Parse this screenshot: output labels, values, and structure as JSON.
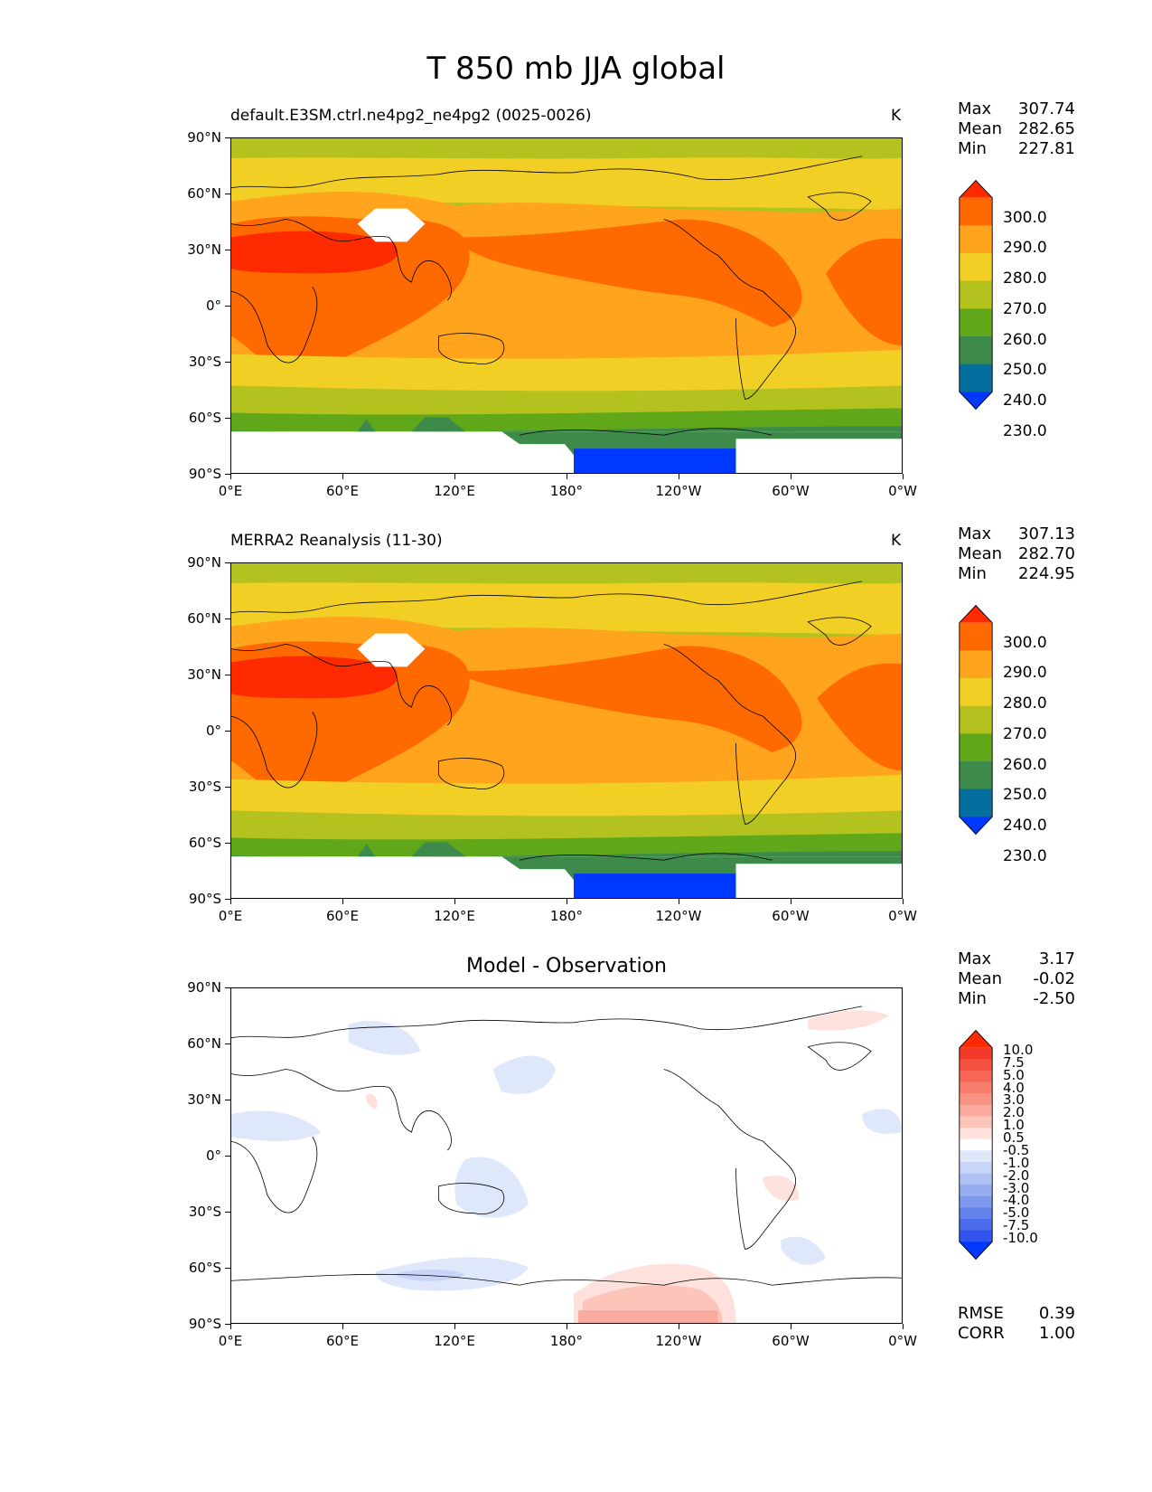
{
  "figure": {
    "title": "T 850 mb JJA global"
  },
  "axes": {
    "y_ticks": [
      "90°N",
      "60°N",
      "30°N",
      "0°",
      "30°S",
      "60°S",
      "90°S"
    ],
    "x_ticks": [
      "0°E",
      "60°E",
      "120°E",
      "180°",
      "120°W",
      "60°W",
      "0°W"
    ]
  },
  "panels": [
    {
      "title": "default.E3SM.ctrl.ne4pg2_ne4pg2 (0025-0026)",
      "units": "K",
      "stats": {
        "max_label": "Max",
        "max": "307.74",
        "mean_label": "Mean",
        "mean": "282.65",
        "min_label": "Min",
        "min": "227.81"
      },
      "colorbar": {
        "labels": [
          "300.0",
          "290.0",
          "280.0",
          "270.0",
          "260.0",
          "250.0",
          "240.0",
          "230.0"
        ],
        "colors": [
          "#ff2a00",
          "#ff6a00",
          "#ffa41c",
          "#f2cf24",
          "#b3c21f",
          "#60a81a",
          "#3e8a4b",
          "#046e9e",
          "#0038ff"
        ]
      },
      "chart_data": {
        "type": "heatmap",
        "variable": "T 850 mb",
        "season": "JJA",
        "units": "K",
        "xlim": [
          0,
          360
        ],
        "ylim": [
          -90,
          90
        ],
        "levels": [
          230,
          240,
          250,
          260,
          270,
          280,
          290,
          300
        ],
        "zonal_bands": [
          {
            "lat": [
              78,
              90
            ],
            "range_K": [
              260,
              270
            ]
          },
          {
            "lat": [
              65,
              78
            ],
            "range_K": [
              270,
              280
            ]
          },
          {
            "lat": [
              40,
              65
            ],
            "range_K": [
              280,
              290
            ]
          },
          {
            "lat": [
              -5,
              40
            ],
            "range_K": [
              290,
              300
            ]
          },
          {
            "lat": [
              -30,
              -5
            ],
            "range_K": [
              280,
              290
            ]
          },
          {
            "lat": [
              -45,
              -30
            ],
            "range_K": [
              270,
              280
            ]
          },
          {
            "lat": [
              -58,
              -45
            ],
            "range_K": [
              260,
              270
            ]
          },
          {
            "lat": [
              -70,
              -58
            ],
            "range_K": [
              250,
              260
            ]
          },
          {
            "lat": [
              -90,
              -75
            ],
            "range_K": [
              220,
              230
            ]
          }
        ],
        "max": 307.74,
        "mean": 282.65,
        "min": 227.81
      }
    },
    {
      "title": "MERRA2 Reanalysis (11-30)",
      "units": "K",
      "stats": {
        "max_label": "Max",
        "max": "307.13",
        "mean_label": "Mean",
        "mean": "282.70",
        "min_label": "Min",
        "min": "224.95"
      },
      "colorbar": {
        "labels": [
          "300.0",
          "290.0",
          "280.0",
          "270.0",
          "260.0",
          "250.0",
          "240.0",
          "230.0"
        ],
        "colors": [
          "#ff2a00",
          "#ff6a00",
          "#ffa41c",
          "#f2cf24",
          "#b3c21f",
          "#60a81a",
          "#3e8a4b",
          "#046e9e",
          "#0038ff"
        ]
      },
      "chart_data": {
        "type": "heatmap",
        "variable": "T 850 mb",
        "season": "JJA",
        "units": "K",
        "xlim": [
          0,
          360
        ],
        "ylim": [
          -90,
          90
        ],
        "levels": [
          230,
          240,
          250,
          260,
          270,
          280,
          290,
          300
        ],
        "max": 307.13,
        "mean": 282.7,
        "min": 224.95
      }
    },
    {
      "title": "Model - Observation",
      "units": "",
      "stats": {
        "max_label": "Max",
        "max": "3.17",
        "mean_label": "Mean",
        "mean": "-0.02",
        "min_label": "Min",
        "min": "-2.50"
      },
      "extra_stats": {
        "rmse_label": "RMSE",
        "rmse": "0.39",
        "corr_label": "CORR",
        "corr": "1.00"
      },
      "colorbar": {
        "labels": [
          "10.0",
          "7.5",
          "5.0",
          "4.0",
          "3.0",
          "2.0",
          "1.0",
          "0.5",
          "-0.5",
          "-1.0",
          "-2.0",
          "-3.0",
          "-4.0",
          "-5.0",
          "-7.5",
          "-10.0"
        ],
        "colors": [
          "#ff2a00",
          "#f23a2a",
          "#f4503f",
          "#f66655",
          "#f77c6c",
          "#f99384",
          "#fbab9d",
          "#fdc4ba",
          "#fee1dc",
          "#ffffff",
          "#dfe7fb",
          "#c8d5f8",
          "#b0c2f4",
          "#97adf1",
          "#7e98ee",
          "#6482ec",
          "#4a6bea",
          "#2f53ec",
          "#0038ff"
        ]
      },
      "chart_data": {
        "type": "heatmap",
        "variable": "T 850 mb difference",
        "xlim": [
          0,
          360
        ],
        "ylim": [
          -90,
          90
        ],
        "levels": [
          -10,
          -7.5,
          -5,
          -4,
          -3,
          -2,
          -1,
          -0.5,
          0.5,
          1,
          2,
          3,
          4,
          5,
          7.5,
          10
        ],
        "max": 3.17,
        "mean": -0.02,
        "min": -2.5,
        "rmse": 0.39,
        "corr": 1.0
      }
    }
  ]
}
